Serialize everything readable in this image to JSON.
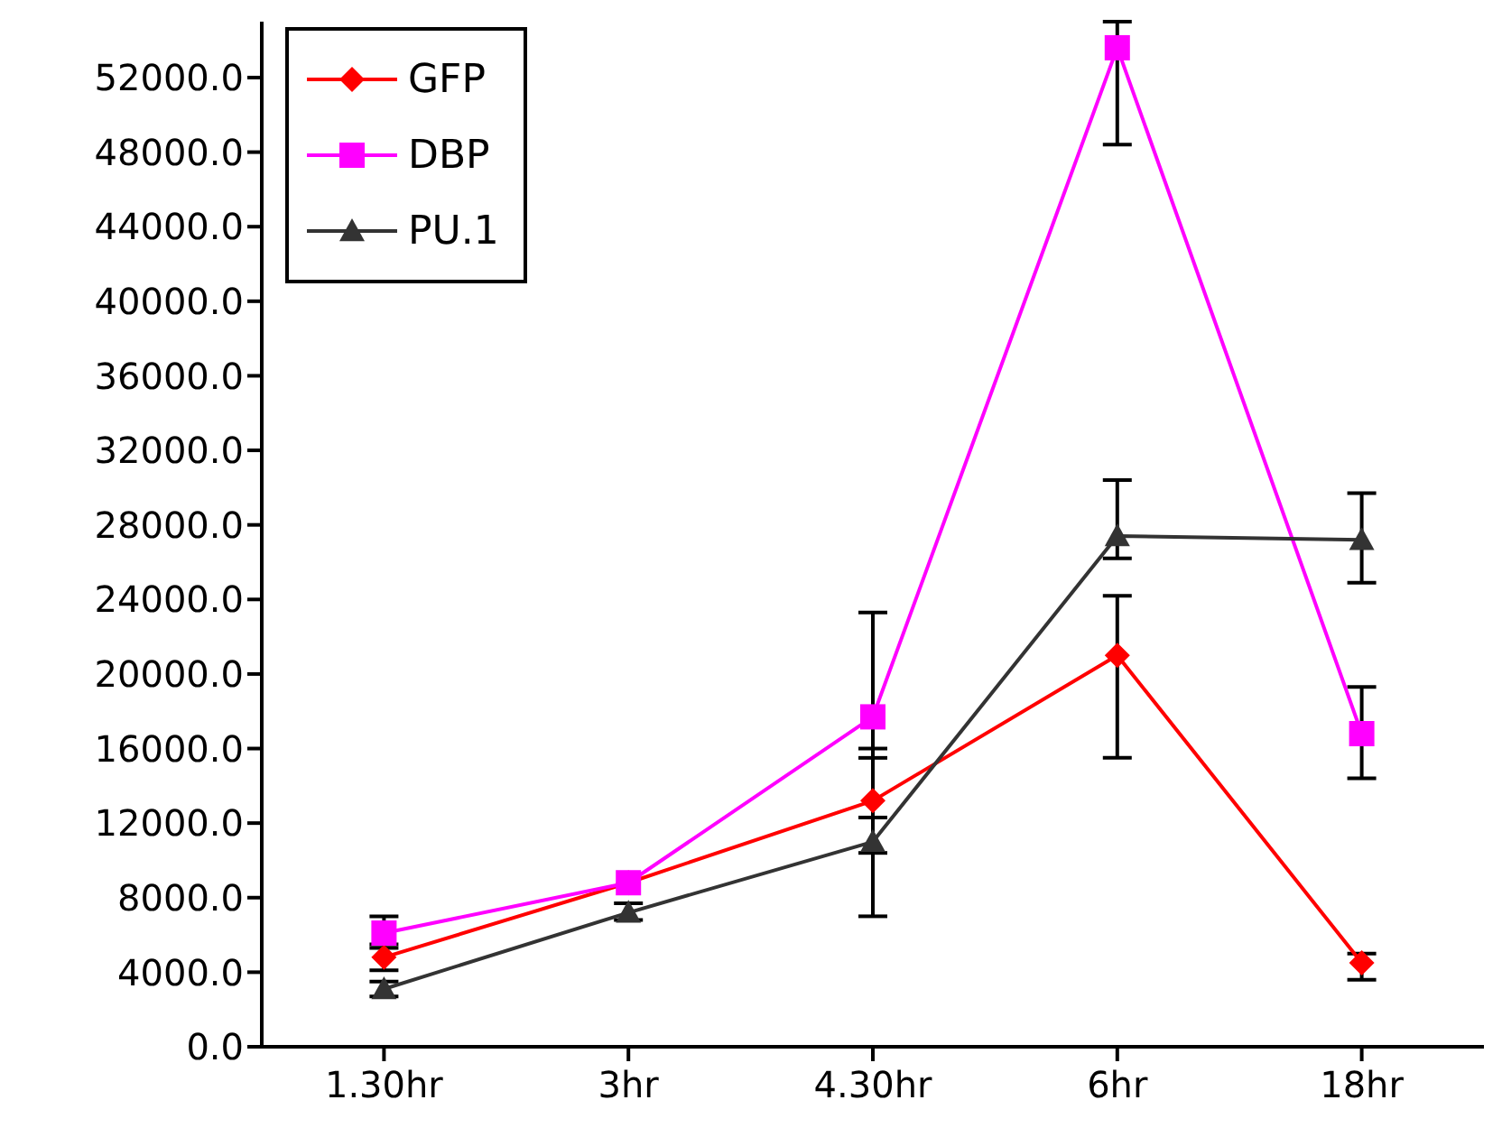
{
  "chart_data": {
    "type": "line",
    "categories": [
      "1.30hr",
      "3hr",
      "4.30hr",
      "6hr",
      "18hr"
    ],
    "series": [
      {
        "name": "GFP",
        "color": "#ff0000",
        "marker": "diamond",
        "values": [
          4800,
          8800,
          13200,
          21000,
          4500
        ],
        "errors": [
          [
            4100,
            5500
          ],
          null,
          [
            10400,
            16000
          ],
          [
            15500,
            24200
          ],
          [
            3600,
            5000
          ]
        ]
      },
      {
        "name": "DBP",
        "color": "#ff00ff",
        "marker": "square",
        "values": [
          6100,
          8800,
          17700,
          53600,
          16800
        ],
        "errors": [
          [
            5300,
            7000
          ],
          null,
          [
            12300,
            23300
          ],
          [
            48400,
            55000
          ],
          [
            14400,
            19300
          ]
        ]
      },
      {
        "name": "PU.1",
        "color": "#333333",
        "marker": "triangle",
        "values": [
          3100,
          7200,
          11000,
          27400,
          27200
        ],
        "errors": [
          [
            2700,
            3500
          ],
          [
            6800,
            7700
          ],
          [
            7000,
            15500
          ],
          [
            26200,
            30400
          ],
          [
            24900,
            29700
          ]
        ]
      }
    ],
    "ylim": [
      0,
      55000
    ],
    "yticks": [
      {
        "value": 0,
        "label": "0.0"
      },
      {
        "value": 4000,
        "label": "4000.0"
      },
      {
        "value": 8000,
        "label": "8000.0"
      },
      {
        "value": 12000,
        "label": "12000.0"
      },
      {
        "value": 16000,
        "label": "16000.0"
      },
      {
        "value": 20000,
        "label": "20000.0"
      },
      {
        "value": 24000,
        "label": "24000.0"
      },
      {
        "value": 28000,
        "label": "28000.0"
      },
      {
        "value": 32000,
        "label": "32000.0"
      },
      {
        "value": 36000,
        "label": "36000.0"
      },
      {
        "value": 40000,
        "label": "40000.0"
      },
      {
        "value": 44000,
        "label": "44000.0"
      },
      {
        "value": 48000,
        "label": "48000.0"
      },
      {
        "value": 52000,
        "label": "52000.0"
      }
    ],
    "grid": false,
    "legend": "top left",
    "line_style": "solid"
  }
}
